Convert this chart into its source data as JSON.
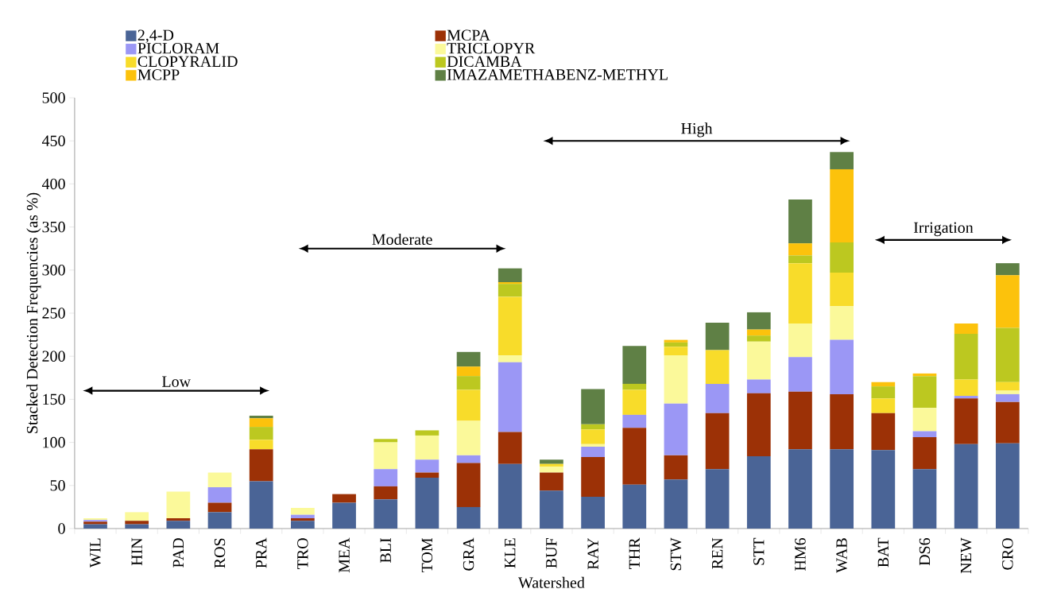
{
  "chart_data": {
    "type": "bar",
    "stacked": true,
    "xlabel": "Watershed",
    "ylabel": "Stacked Detection Frequencies (as %)",
    "categories": [
      "WIL",
      "HIN",
      "PAD",
      "ROS",
      "PRA",
      "TRO",
      "MEA",
      "BLI",
      "TOM",
      "GRA",
      "KLE",
      "BUF",
      "RAY",
      "THR",
      "STW",
      "REN",
      "STT",
      "HM6",
      "WAB",
      "BAT",
      "DS6",
      "NEW",
      "CRO"
    ],
    "series": [
      {
        "name": "2,4-D",
        "color": "#4a6496",
        "values": [
          5,
          5,
          9,
          19,
          55,
          9,
          30,
          34,
          59,
          25,
          75,
          44,
          37,
          51,
          57,
          69,
          84,
          92,
          92,
          91,
          69,
          98,
          99
        ]
      },
      {
        "name": "MCPA",
        "color": "#9c3106",
        "values": [
          3,
          4,
          3,
          11,
          37,
          3,
          10,
          15,
          6,
          51,
          37,
          21,
          46,
          66,
          28,
          65,
          73,
          67,
          64,
          43,
          37,
          53,
          48
        ]
      },
      {
        "name": "PICLORAM",
        "color": "#9b97f5",
        "values": [
          2,
          0,
          0,
          18,
          0,
          4,
          0,
          20,
          15,
          9,
          81,
          0,
          12,
          15,
          60,
          34,
          16,
          40,
          63,
          0,
          7,
          3,
          9
        ]
      },
      {
        "name": "TRICLOPYR",
        "color": "#fbf99a",
        "values": [
          2,
          10,
          31,
          17,
          0,
          8,
          0,
          31,
          28,
          40,
          8,
          7,
          3,
          0,
          56,
          0,
          44,
          39,
          39,
          0,
          27,
          0,
          4
        ]
      },
      {
        "name": "CLOPYRALID",
        "color": "#f8dc2a",
        "values": [
          0,
          0,
          0,
          0,
          11,
          0,
          0,
          0,
          0,
          36,
          68,
          3,
          17,
          29,
          10,
          39,
          0,
          70,
          39,
          17,
          0,
          19,
          10
        ]
      },
      {
        "name": "DICAMBA",
        "color": "#bcc820",
        "values": [
          0,
          0,
          0,
          0,
          15,
          0,
          0,
          4,
          6,
          16,
          15,
          0,
          6,
          7,
          5,
          0,
          7,
          9,
          35,
          14,
          37,
          53,
          63
        ]
      },
      {
        "name": "MCPP",
        "color": "#fcc20c",
        "values": [
          0,
          0,
          0,
          0,
          10,
          0,
          0,
          0,
          0,
          11,
          2,
          0,
          0,
          0,
          3,
          0,
          7,
          14,
          85,
          5,
          3,
          12,
          61
        ]
      },
      {
        "name": "IMAZAMETHABENZ-METHYL",
        "color": "#5f8045",
        "values": [
          0,
          0,
          0,
          0,
          3,
          0,
          0,
          0,
          0,
          17,
          16,
          5,
          41,
          44,
          0,
          32,
          20,
          51,
          20,
          0,
          0,
          0,
          14
        ]
      }
    ],
    "ylim": [
      0,
      500
    ],
    "yticks": [
      0,
      50,
      100,
      150,
      200,
      250,
      300,
      350,
      400,
      450,
      500
    ],
    "legend": "top",
    "annotations": [
      "Low",
      "Moderate",
      "High",
      "Irrigation"
    ]
  }
}
